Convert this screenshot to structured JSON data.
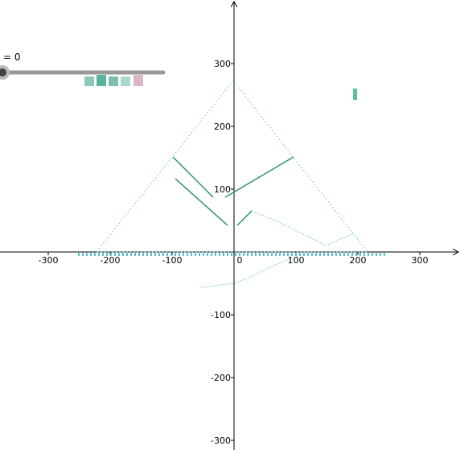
{
  "slider": {
    "label": "= 0"
  },
  "axes": {
    "x_ticks": [
      -300,
      -200,
      -100,
      0,
      100,
      200,
      300
    ],
    "y_ticks": [
      -300,
      -200,
      -100,
      100,
      200,
      300
    ]
  }
}
